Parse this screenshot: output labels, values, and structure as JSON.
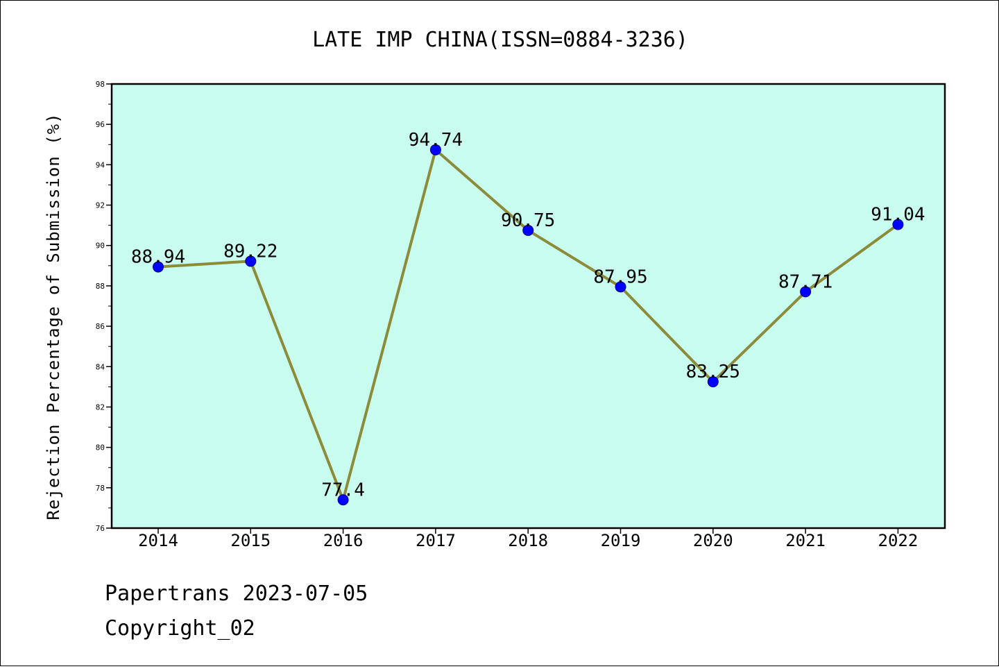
{
  "chart_data": {
    "type": "line",
    "title": "LATE IMP CHINA(ISSN=0884-3236)",
    "xlabel": "",
    "ylabel": "Rejection Percentage of Submission (%)",
    "x": [
      "2014",
      "2015",
      "2016",
      "2017",
      "2018",
      "2019",
      "2020",
      "2021",
      "2022"
    ],
    "series": [
      {
        "values": [
          88.94,
          89.22,
          77.4,
          94.74,
          90.75,
          87.95,
          83.25,
          87.71,
          91.04
        ],
        "labels": [
          "88.94",
          "89.22",
          "77.4",
          "94.74",
          "90.75",
          "87.95",
          "83.25",
          "87.71",
          "91.04"
        ],
        "line_color": "#8b8b3a",
        "marker_color": "#0000ff"
      }
    ],
    "ylim": [
      76,
      98
    ],
    "yticks": [
      "76",
      "78",
      "80",
      "82",
      "84",
      "86",
      "88",
      "90",
      "92",
      "94",
      "96",
      "98"
    ],
    "plot_background": "#c8fcee",
    "grid": false,
    "legend": "none"
  },
  "footer": {
    "source_line": "Papertrans 2023-07-05",
    "copyright_line": "Copyright_02"
  }
}
